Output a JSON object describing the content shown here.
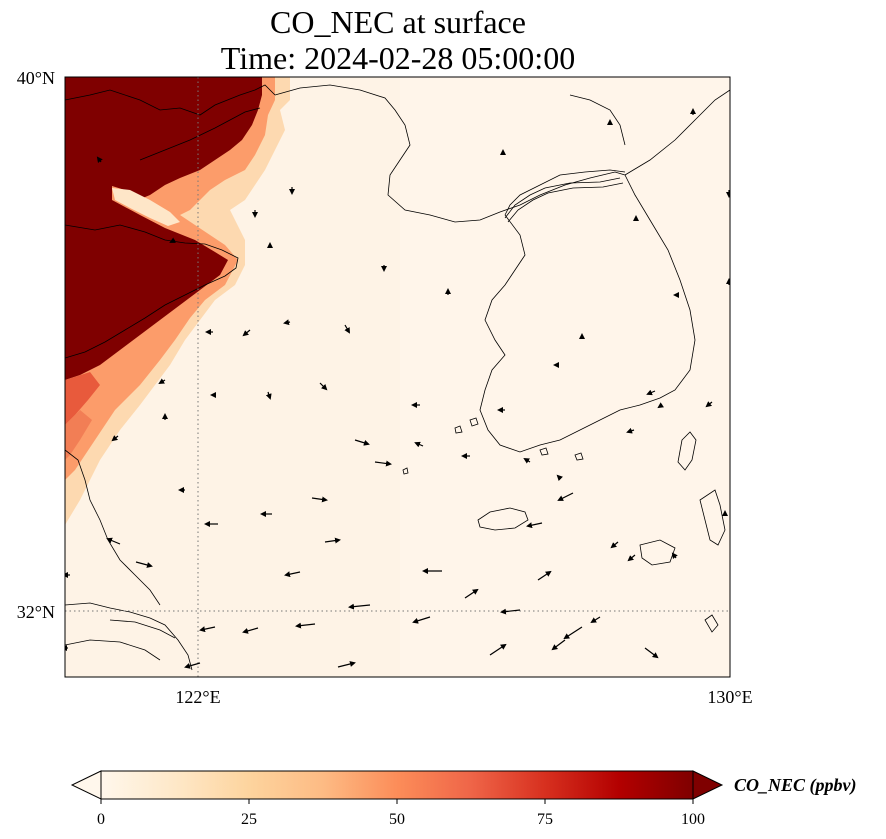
{
  "title": {
    "line1": "CO_NEC at surface",
    "line2": "Time: 2024-02-28 05:00:00"
  },
  "map": {
    "variable": "CO_NEC",
    "level": "surface",
    "extent": {
      "lon_min": 120.0,
      "lon_max": 130.0,
      "lat_min": 31.0,
      "lat_max": 40.0
    },
    "gridlines": {
      "lon": [
        122.0
      ],
      "lat": [
        32.0
      ],
      "style": "dotted grey"
    },
    "lon_tick_labels": [
      "122°E",
      "130°E"
    ],
    "lat_tick_labels": [
      "40°N",
      "32°N"
    ],
    "plume_region": "high CO_NEC (≥100 ppbv) over eastern China coast and Shandong/Bohai area, west of ~123.5°E",
    "background_value": "near 0 ppbv over Yellow Sea, Korea and East China Sea",
    "wind_vectors": "black arrows, mostly from east/northeast toward west/southwest over the sea"
  },
  "colorbar": {
    "label": "CO_NEC (ppbv)",
    "ticks": [
      "0",
      "25",
      "50",
      "75",
      "100"
    ],
    "min": 0,
    "max": 100,
    "extend": "both",
    "colormap": [
      "#fff7ec",
      "#fee8c8",
      "#fdd49e",
      "#fdbb84",
      "#fc8d59",
      "#ef6548",
      "#d7301f",
      "#b30000",
      "#7f0000"
    ]
  }
}
